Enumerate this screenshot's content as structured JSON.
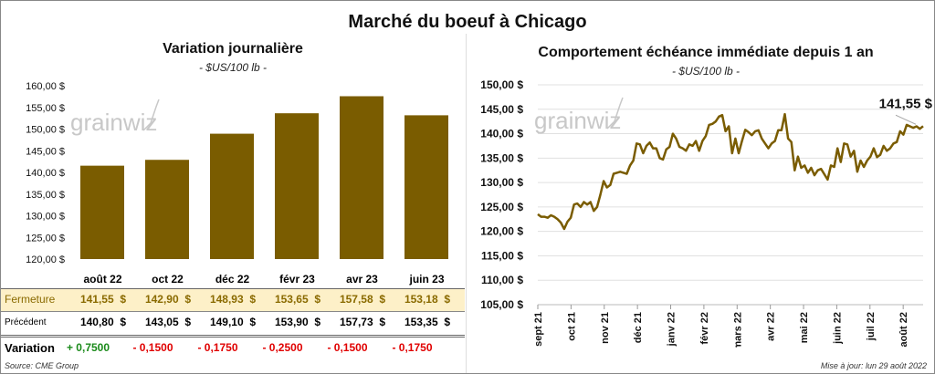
{
  "title": "Marché du boeuf à Chicago",
  "source": "Source: CME Group",
  "updated": "Mise à jour: lun 29 août 2022",
  "watermark": "grainwiz",
  "colors": {
    "bar": "#7a5c00",
    "line": "#7a5c00",
    "fermeture_bg": "#fdf0c8",
    "fermeture_text": "#8a6a00",
    "positive": "#1a8a1a",
    "negative": "#e00000"
  },
  "table": {
    "labels": {
      "fermeture": "Fermeture",
      "precedent": "Précédent",
      "variation": "Variation"
    },
    "fermeture": [
      "141,55  $",
      "142,90  $",
      "148,93  $",
      "153,65  $",
      "157,58  $",
      "153,18  $"
    ],
    "precedent": [
      "140,80  $",
      "143,05  $",
      "149,10  $",
      "153,90  $",
      "157,73  $",
      "153,35  $"
    ],
    "variation": [
      "+ 0,7500",
      "- 0,1500",
      "- 0,1750",
      "- 0,2500",
      "- 0,1500",
      "- 0,1750"
    ]
  },
  "chart_data": [
    {
      "type": "bar",
      "title": "Variation journalière",
      "subtitle": "- $US/100 lb -",
      "categories": [
        "août 22",
        "oct 22",
        "déc 22",
        "févr 23",
        "avr 23",
        "juin 23"
      ],
      "values": [
        141.55,
        142.9,
        148.93,
        153.65,
        157.58,
        153.18
      ],
      "ylim": [
        120,
        160
      ],
      "yticks": [
        "120,00 $",
        "125,00 $",
        "130,00 $",
        "135,00 $",
        "140,00 $",
        "145,00 $",
        "150,00 $",
        "155,00 $",
        "160,00 $"
      ]
    },
    {
      "type": "line",
      "title": "Comportement  échéance immédiate depuis 1 an",
      "subtitle": "- $US/100 lb -",
      "xticks": [
        "sept 21",
        "oct 21",
        "nov 21",
        "déc 21",
        "janv 22",
        "févr 22",
        "mars 22",
        "avr 22",
        "mai 22",
        "juin 22",
        "juil 22",
        "août 22"
      ],
      "ylim": [
        105,
        150
      ],
      "yticks": [
        "105,00 $",
        "110,00 $",
        "115,00 $",
        "120,00 $",
        "125,00 $",
        "130,00 $",
        "135,00 $",
        "140,00 $",
        "145,00 $",
        "150,00 $"
      ],
      "last_label": "141,55 $",
      "values": [
        123.5,
        123,
        123,
        122.8,
        123.3,
        123,
        122.5,
        121.8,
        120.5,
        122,
        122.8,
        125.5,
        125.7,
        125,
        126,
        125.5,
        126,
        124.2,
        125,
        127.5,
        130.3,
        129,
        129.5,
        131.8,
        132,
        132.2,
        132,
        131.8,
        133.5,
        134.5,
        138,
        137.8,
        136,
        137.5,
        138.2,
        137,
        137,
        135,
        134.7,
        136.8,
        137.3,
        140,
        139,
        137.3,
        137,
        136.5,
        137.8,
        137.5,
        138.5,
        136.5,
        138.5,
        139.5,
        141.8,
        142,
        142.5,
        143.5,
        143.8,
        140.5,
        141.5,
        136,
        139,
        136,
        138.5,
        140.8,
        140.3,
        139.7,
        140.5,
        140.7,
        139,
        138,
        137,
        138,
        138.5,
        140.7,
        140.7,
        144,
        139,
        138.3,
        132.5,
        135.3,
        133,
        133.5,
        132,
        133,
        131.5,
        132.5,
        132.8,
        131.7,
        130.6,
        133.5,
        133.2,
        137,
        134.2,
        138,
        137.8,
        135.3,
        136.5,
        132.2,
        134.5,
        133.2,
        134.5,
        135.3,
        137,
        135.2,
        135.7,
        137.5,
        136.5,
        137,
        138,
        138.3,
        140.5,
        139.8,
        141.8,
        141.5,
        141.2,
        141.5,
        141,
        141.55
      ]
    }
  ]
}
